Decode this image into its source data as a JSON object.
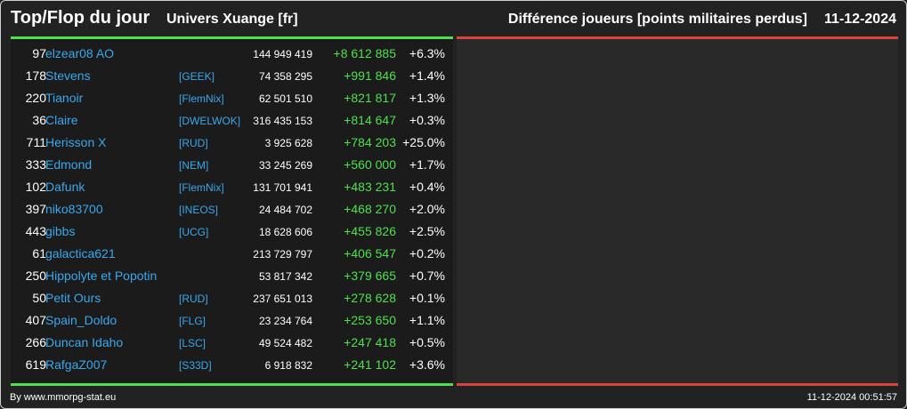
{
  "header": {
    "title": "Top/Flop du jour",
    "universe": "Univers Xuange [fr]",
    "metric": "Différence joueurs [points militaires perdus]",
    "date": "11-12-2024"
  },
  "rows": [
    {
      "rank": "97",
      "name": "elzear08 AO",
      "alliance": "",
      "points": "144 949 419",
      "diff": "+8 612 885",
      "pct": "+6.3%"
    },
    {
      "rank": "178",
      "name": "Stevens",
      "alliance": "[GEEK]",
      "points": "74 358 295",
      "diff": "+991 846",
      "pct": "+1.4%"
    },
    {
      "rank": "220",
      "name": "Tianoir",
      "alliance": "[FlemNix]",
      "points": "62 501 510",
      "diff": "+821 817",
      "pct": "+1.3%"
    },
    {
      "rank": "36",
      "name": "Claire",
      "alliance": "[DWELWOK]",
      "points": "316 435 153",
      "diff": "+814 647",
      "pct": "+0.3%"
    },
    {
      "rank": "711",
      "name": "Herisson X",
      "alliance": "[RUD]",
      "points": "3 925 628",
      "diff": "+784 203",
      "pct": "+25.0%"
    },
    {
      "rank": "333",
      "name": "Edmond",
      "alliance": "[NEM]",
      "points": "33 245 269",
      "diff": "+560 000",
      "pct": "+1.7%"
    },
    {
      "rank": "102",
      "name": "Dafunk",
      "alliance": "[FlemNix]",
      "points": "131 701 941",
      "diff": "+483 231",
      "pct": "+0.4%"
    },
    {
      "rank": "397",
      "name": "niko83700",
      "alliance": "[INEOS]",
      "points": "24 484 702",
      "diff": "+468 270",
      "pct": "+2.0%"
    },
    {
      "rank": "443",
      "name": "gibbs",
      "alliance": "[UCG]",
      "points": "18 628 606",
      "diff": "+455 826",
      "pct": "+2.5%"
    },
    {
      "rank": "61",
      "name": "galactica621",
      "alliance": "",
      "points": "213 729 797",
      "diff": "+406 547",
      "pct": "+0.2%"
    },
    {
      "rank": "250",
      "name": "Hippolyte et Popotin",
      "alliance": "",
      "points": "53 817 342",
      "diff": "+379 665",
      "pct": "+0.7%"
    },
    {
      "rank": "50",
      "name": "Petit Ours",
      "alliance": "[RUD]",
      "points": "237 651 013",
      "diff": "+278 628",
      "pct": "+0.1%"
    },
    {
      "rank": "407",
      "name": "Spain_Doldo",
      "alliance": "[FLG]",
      "points": "23 234 764",
      "diff": "+253 650",
      "pct": "+1.1%"
    },
    {
      "rank": "266",
      "name": "Duncan Idaho",
      "alliance": "[LSC]",
      "points": "49 524 482",
      "diff": "+247 418",
      "pct": "+0.5%"
    },
    {
      "rank": "619",
      "name": "RafgaZ007",
      "alliance": "[S33D]",
      "points": "6 918 832",
      "diff": "+241 102",
      "pct": "+3.6%"
    }
  ],
  "footer": {
    "source": "By www.mmorpg-stat.eu",
    "timestamp": "11-12-2024 00:51:57"
  },
  "colors": {
    "top_accent": "#4fe04f",
    "flop_accent": "#d9443c",
    "link": "#3aa8ec"
  }
}
